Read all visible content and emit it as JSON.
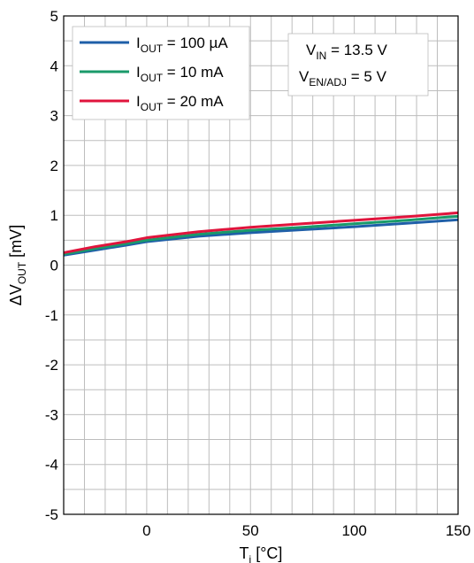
{
  "chart_data": {
    "type": "line",
    "title": "",
    "xlabel": {
      "main": "T",
      "sub": "j",
      "unit": "[°C]"
    },
    "ylabel": {
      "prefix": "ΔV",
      "sub": "OUT",
      "unit": "[mV]"
    },
    "xlim": [
      -40,
      150
    ],
    "ylim": [
      -5,
      5
    ],
    "x_ticks": [
      0,
      50,
      100,
      150
    ],
    "y_ticks": [
      -5,
      -4,
      -3,
      -2,
      -1,
      0,
      1,
      2,
      3,
      4,
      5
    ],
    "grid": true,
    "legend_position": "top-left",
    "series": [
      {
        "name": "I_OUT = 100 µA",
        "label": {
          "main": "I",
          "sub": "OUT",
          "rest": " = 100 µA"
        },
        "color": "#1f5fa8",
        "x": [
          -40,
          -25,
          -10,
          0,
          25,
          50,
          75,
          100,
          125,
          150
        ],
        "y": [
          0.2,
          0.3,
          0.4,
          0.47,
          0.58,
          0.65,
          0.71,
          0.77,
          0.84,
          0.91
        ]
      },
      {
        "name": "I_OUT = 10 mA",
        "label": {
          "main": "I",
          "sub": "OUT",
          "rest": " = 10 mA"
        },
        "color": "#1a9a6a",
        "x": [
          -40,
          -25,
          -10,
          0,
          25,
          50,
          75,
          100,
          125,
          150
        ],
        "y": [
          0.22,
          0.33,
          0.43,
          0.5,
          0.62,
          0.7,
          0.76,
          0.83,
          0.9,
          0.98
        ]
      },
      {
        "name": "I_OUT = 20 mA",
        "label": {
          "main": "I",
          "sub": "OUT",
          "rest": " = 20 mA"
        },
        "color": "#e0143c",
        "x": [
          -40,
          -25,
          -10,
          0,
          25,
          50,
          75,
          100,
          125,
          150
        ],
        "y": [
          0.25,
          0.37,
          0.47,
          0.55,
          0.67,
          0.76,
          0.83,
          0.9,
          0.97,
          1.05
        ]
      }
    ],
    "annotations": [
      {
        "main": "V",
        "sub": "IN",
        "rest": " = 13.5 V"
      },
      {
        "main": "V",
        "sub": "EN/ADJ",
        "rest": " = 5 V"
      }
    ]
  }
}
